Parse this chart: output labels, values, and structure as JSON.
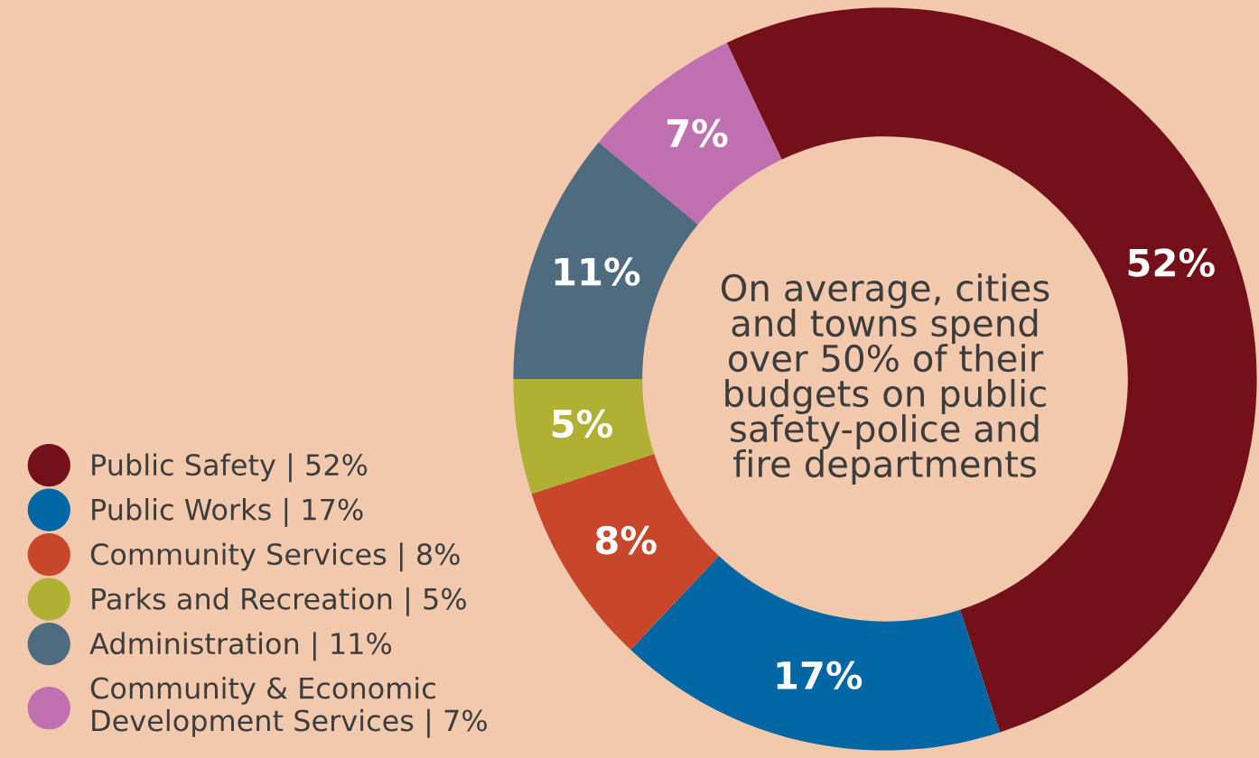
{
  "chart_data": {
    "type": "donut",
    "categories": [
      "Public Safety | 52%",
      "Public Works | 17%",
      "Community Services | 8%",
      "Parks and Recreation | 5%",
      "Administration | 11%",
      "Community & Economic\nDevelopment Services | 7%"
    ],
    "values": [
      52,
      17,
      8,
      5,
      11,
      7
    ],
    "value_labels": [
      "52%",
      "17%",
      "8%",
      "5%",
      "11%",
      "7%"
    ],
    "colors": [
      "#74101a",
      "#0066a4",
      "#c8472a",
      "#b0b034",
      "#4f6b80",
      "#c070b0"
    ],
    "annotations": [
      "On average, cities\nand towns spend\nover 50% of their\nbudgets on public\nsafety-police and\nfire departments"
    ],
    "legend": "bottom left"
  }
}
